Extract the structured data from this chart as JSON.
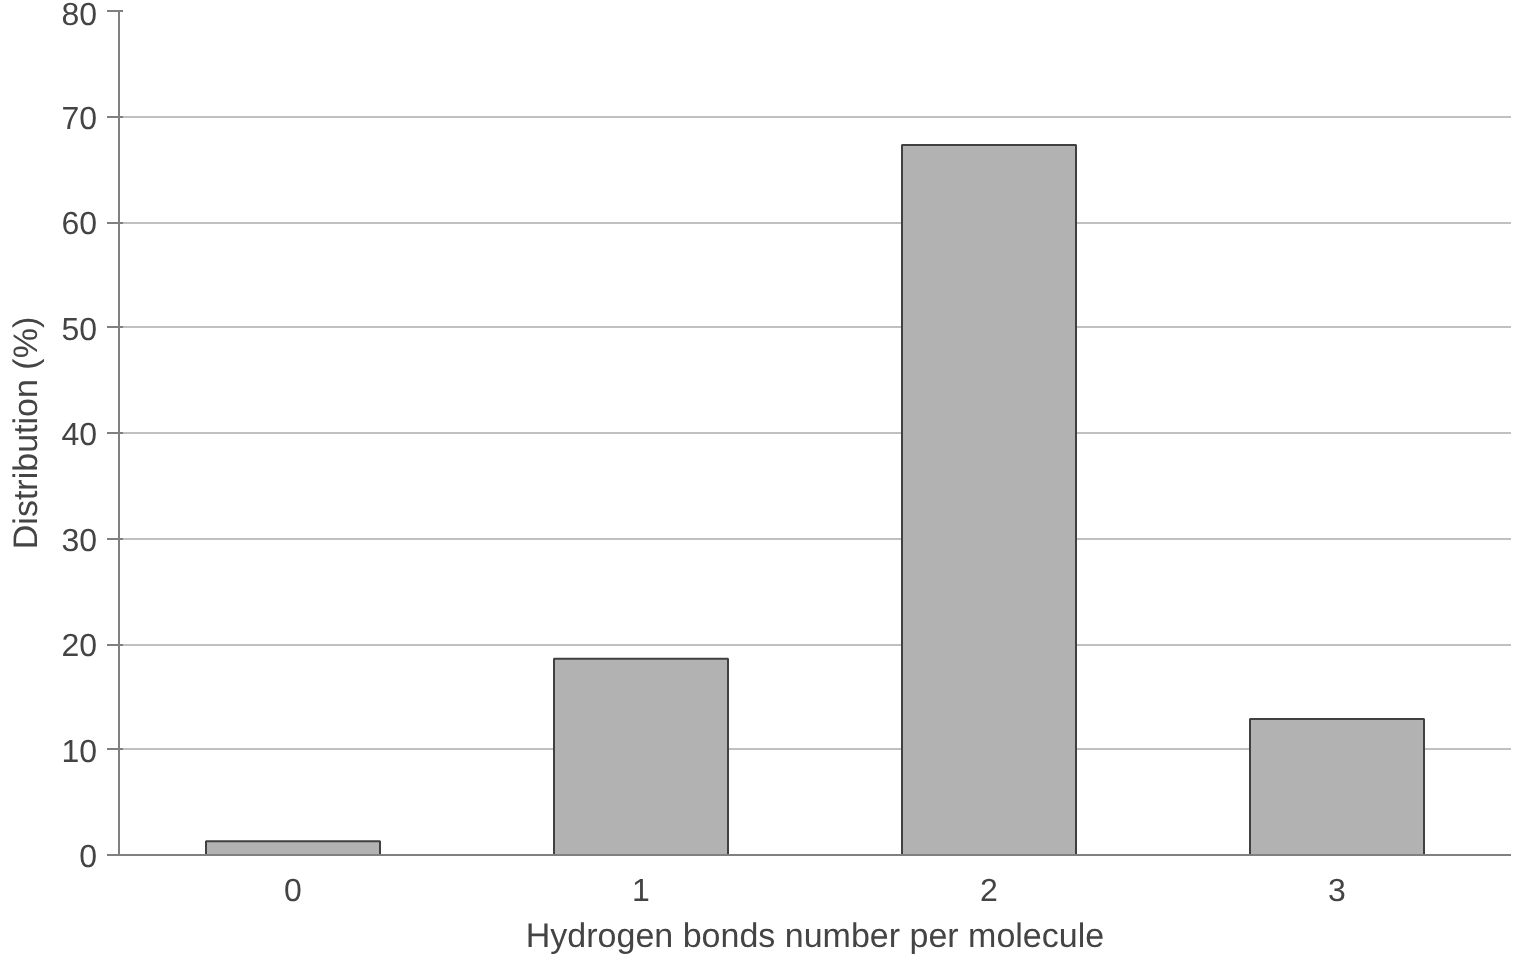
{
  "chart_data": {
    "type": "bar",
    "xlabel": "Hydrogen bonds number per molecule",
    "ylabel": "Distribution (%)",
    "categories": [
      "0",
      "1",
      "2",
      "3"
    ],
    "values": [
      1.3,
      18.6,
      67.3,
      12.9
    ],
    "color": "#b2b2b2",
    "ylim": [
      0,
      80
    ],
    "yticks": [
      0,
      10,
      20,
      30,
      40,
      50,
      60,
      70,
      80
    ],
    "grid": "y"
  }
}
